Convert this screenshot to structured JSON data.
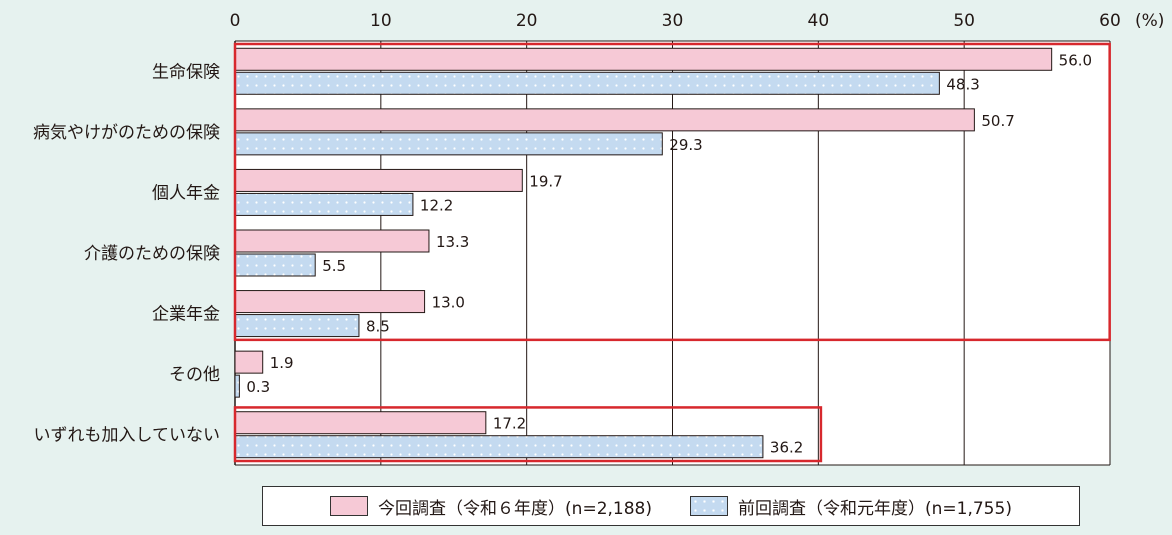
{
  "chart_data": {
    "type": "bar",
    "orientation": "horizontal",
    "categories": [
      "生命保険",
      "病気やけがのための保険",
      "個人年金",
      "介護のための保険",
      "企業年金",
      "その他",
      "いずれも加入していない"
    ],
    "series": [
      {
        "name": "今回調査（令和６年度）(n=2,188)",
        "values": [
          56.0,
          50.7,
          19.7,
          13.3,
          13.0,
          1.9,
          17.2
        ],
        "color": "#f6c9d6",
        "pattern": "solid"
      },
      {
        "name": "前回調査（令和元年度）(n=1,755)",
        "values": [
          48.3,
          29.3,
          12.2,
          5.5,
          8.5,
          0.3,
          36.2
        ],
        "color": "#c4daf0",
        "pattern": "dotted"
      }
    ],
    "xlim": [
      0,
      60
    ],
    "xticks": [
      0,
      10,
      20,
      30,
      40,
      50,
      60
    ],
    "unit_label": "(%)",
    "grid": true,
    "legend_position": "bottom",
    "highlight_color": "#d7282d",
    "highlight_groups": [
      {
        "from": "生命保険",
        "to": "企業年金"
      },
      {
        "from": "いずれも加入していない",
        "to": "いずれも加入していない"
      }
    ]
  }
}
